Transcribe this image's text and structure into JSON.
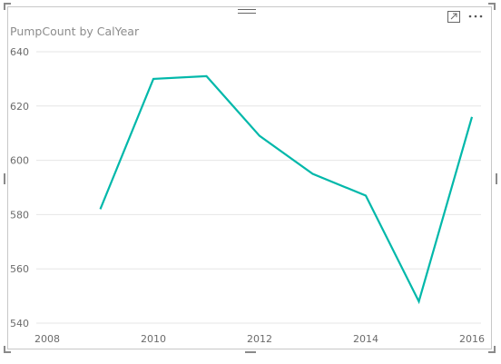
{
  "visual": {
    "title": "PumpCount by CalYear"
  },
  "chart_data": {
    "type": "line",
    "title": "PumpCount by CalYear",
    "xlabel": "",
    "ylabel": "",
    "x": [
      2009,
      2010,
      2011,
      2012,
      2013,
      2014,
      2015,
      2016
    ],
    "series": [
      {
        "values": [
          582,
          630,
          631,
          609,
          595,
          587,
          548,
          616
        ],
        "color": "#01b8aa"
      }
    ],
    "xticks": [
      "2008",
      "2010",
      "2012",
      "2014",
      "2016"
    ],
    "yticks": [
      "540",
      "560",
      "580",
      "600",
      "620",
      "640"
    ],
    "xlim": [
      2008,
      2016
    ],
    "ylim": [
      540,
      640
    ],
    "grid": true,
    "legend": "none"
  },
  "colors": {
    "line": "#01b8aa",
    "gridline": "#e6e6e6",
    "title": "#8c8c8c",
    "tick": "#6b6b6b"
  },
  "icons": {
    "drag": "drag-handle-icon",
    "focus": "focus-mode-icon",
    "more": "more-options-icon"
  }
}
